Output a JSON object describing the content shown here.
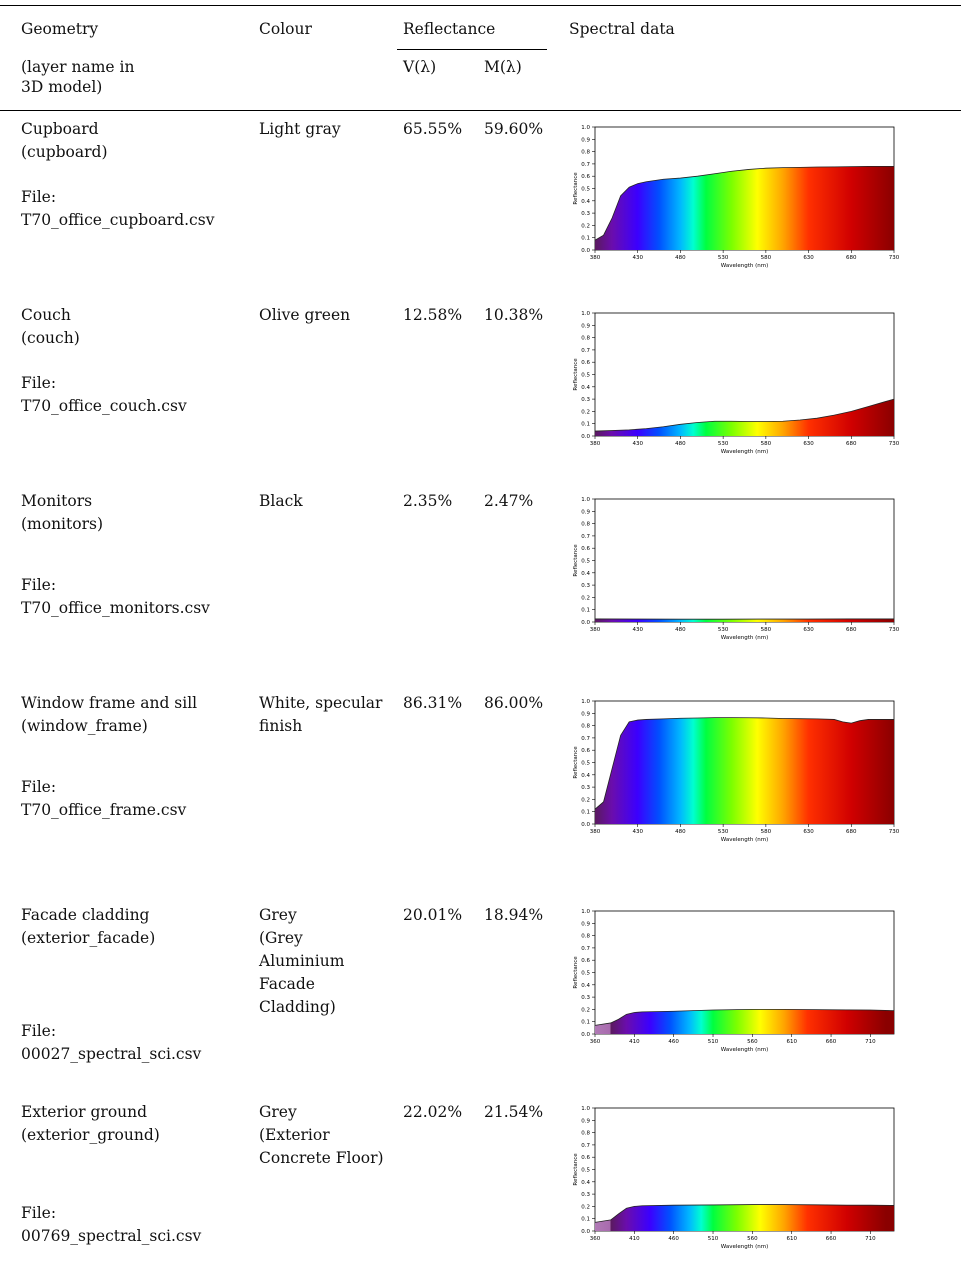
{
  "header": {
    "geometry": "Geometry",
    "geometry_sub1": "(layer name in",
    "geometry_sub2": "3D model)",
    "colour": "Colour",
    "reflectance": "Reflectance",
    "v": "V(λ)",
    "m": "M(λ)",
    "spectral": "Spectral data"
  },
  "axis": {
    "ylabel": "Reflectance",
    "xlabel": "Wavelength (nm)",
    "yticks": [
      "0.0",
      "0.1",
      "0.2",
      "0.3",
      "0.4",
      "0.5",
      "0.6",
      "0.7",
      "0.8",
      "0.9",
      "1.0"
    ],
    "xticks_a": [
      "380",
      "430",
      "480",
      "530",
      "580",
      "630",
      "680",
      "730"
    ],
    "xticks_b": [
      "360",
      "410",
      "460",
      "510",
      "560",
      "610",
      "660",
      "710"
    ]
  },
  "rows": [
    {
      "name": "Cupboard",
      "layer": "(cupboard)",
      "file_label": "File:",
      "file": "T70_office_cupboard.csv",
      "colour": [
        "Light gray"
      ],
      "v": "65.55%",
      "m": "59.60%",
      "chart_data": {
        "type": "area",
        "xlabel": "Wavelength (nm)",
        "ylabel": "Reflectance",
        "xlim": [
          380,
          730
        ],
        "ylim": [
          0,
          1
        ],
        "x": [
          380,
          390,
          400,
          410,
          420,
          430,
          440,
          460,
          480,
          500,
          520,
          540,
          560,
          580,
          600,
          620,
          640,
          660,
          680,
          700,
          730
        ],
        "y": [
          0.08,
          0.12,
          0.26,
          0.44,
          0.51,
          0.54,
          0.555,
          0.575,
          0.585,
          0.6,
          0.62,
          0.64,
          0.655,
          0.665,
          0.67,
          0.672,
          0.675,
          0.676,
          0.678,
          0.68,
          0.68
        ]
      }
    },
    {
      "name": "Couch",
      "layer": "(couch)",
      "file_label": "File:",
      "file": "T70_office_couch.csv",
      "colour": [
        "Olive green"
      ],
      "v": "12.58%",
      "m": "10.38%",
      "chart_data": {
        "type": "area",
        "xlabel": "Wavelength (nm)",
        "ylabel": "Reflectance",
        "xlim": [
          380,
          730
        ],
        "ylim": [
          0,
          1
        ],
        "x": [
          380,
          400,
          420,
          440,
          460,
          480,
          500,
          520,
          540,
          560,
          580,
          600,
          620,
          640,
          660,
          680,
          700,
          720,
          730
        ],
        "y": [
          0.04,
          0.045,
          0.05,
          0.06,
          0.075,
          0.095,
          0.11,
          0.12,
          0.12,
          0.118,
          0.118,
          0.12,
          0.13,
          0.145,
          0.17,
          0.2,
          0.24,
          0.28,
          0.3
        ]
      }
    },
    {
      "name": "Monitors",
      "layer": "(monitors)",
      "file_label": "File:",
      "file": "T70_office_monitors.csv",
      "colour": [
        "Black"
      ],
      "v": "2.35%",
      "m": "2.47%",
      "chart_data": {
        "type": "area",
        "xlabel": "Wavelength (nm)",
        "ylabel": "Reflectance",
        "xlim": [
          380,
          730
        ],
        "ylim": [
          0,
          1
        ],
        "x": [
          380,
          430,
          480,
          530,
          580,
          630,
          680,
          730
        ],
        "y": [
          0.025,
          0.024,
          0.023,
          0.023,
          0.024,
          0.024,
          0.025,
          0.025
        ]
      }
    },
    {
      "name": "Window frame and sill",
      "layer": "(window_frame)",
      "file_label": "File:",
      "file": "T70_office_frame.csv",
      "colour": [
        "White, specular",
        "finish"
      ],
      "v": "86.31%",
      "m": "86.00%",
      "chart_data": {
        "type": "area",
        "xlabel": "Wavelength (nm)",
        "ylabel": "Reflectance",
        "xlim": [
          380,
          730
        ],
        "ylim": [
          0,
          1
        ],
        "x": [
          380,
          390,
          400,
          410,
          420,
          430,
          440,
          460,
          480,
          500,
          520,
          540,
          560,
          580,
          600,
          620,
          640,
          660,
          670,
          680,
          690,
          700,
          730
        ],
        "y": [
          0.12,
          0.18,
          0.45,
          0.72,
          0.83,
          0.845,
          0.85,
          0.855,
          0.86,
          0.862,
          0.865,
          0.865,
          0.864,
          0.862,
          0.858,
          0.856,
          0.855,
          0.85,
          0.83,
          0.82,
          0.84,
          0.85,
          0.85
        ]
      }
    },
    {
      "name": "Facade cladding",
      "layer": "(exterior_facade)",
      "file_label": "File:",
      "file": "00027_spectral_sci.csv",
      "colour": [
        "Grey",
        "(Grey",
        "Aluminium",
        "Facade",
        "Cladding)"
      ],
      "v": "20.01%",
      "m": "18.94%",
      "chart_data": {
        "type": "area",
        "xlabel": "Wavelength (nm)",
        "ylabel": "Reflectance",
        "xlim": [
          360,
          740
        ],
        "ylim": [
          0,
          1
        ],
        "x": [
          360,
          380,
          390,
          400,
          410,
          420,
          460,
          510,
          560,
          600,
          640,
          680,
          710,
          740
        ],
        "y": [
          0.07,
          0.09,
          0.12,
          0.16,
          0.175,
          0.18,
          0.185,
          0.195,
          0.2,
          0.2,
          0.198,
          0.196,
          0.195,
          0.19
        ]
      }
    },
    {
      "name": "Exterior ground",
      "layer": "(exterior_ground)",
      "file_label": "File:",
      "file": "00769_spectral_sci.csv",
      "colour": [
        "Grey",
        "(Exterior",
        "Concrete Floor)"
      ],
      "v": "22.02%",
      "m": "21.54%",
      "chart_data": {
        "type": "area",
        "xlabel": "Wavelength (nm)",
        "ylabel": "Reflectance",
        "xlim": [
          360,
          740
        ],
        "ylim": [
          0,
          1
        ],
        "x": [
          360,
          380,
          390,
          400,
          410,
          420,
          460,
          510,
          560,
          600,
          640,
          680,
          710,
          740
        ],
        "y": [
          0.07,
          0.09,
          0.14,
          0.185,
          0.2,
          0.205,
          0.21,
          0.212,
          0.215,
          0.215,
          0.213,
          0.21,
          0.21,
          0.208
        ]
      }
    }
  ]
}
